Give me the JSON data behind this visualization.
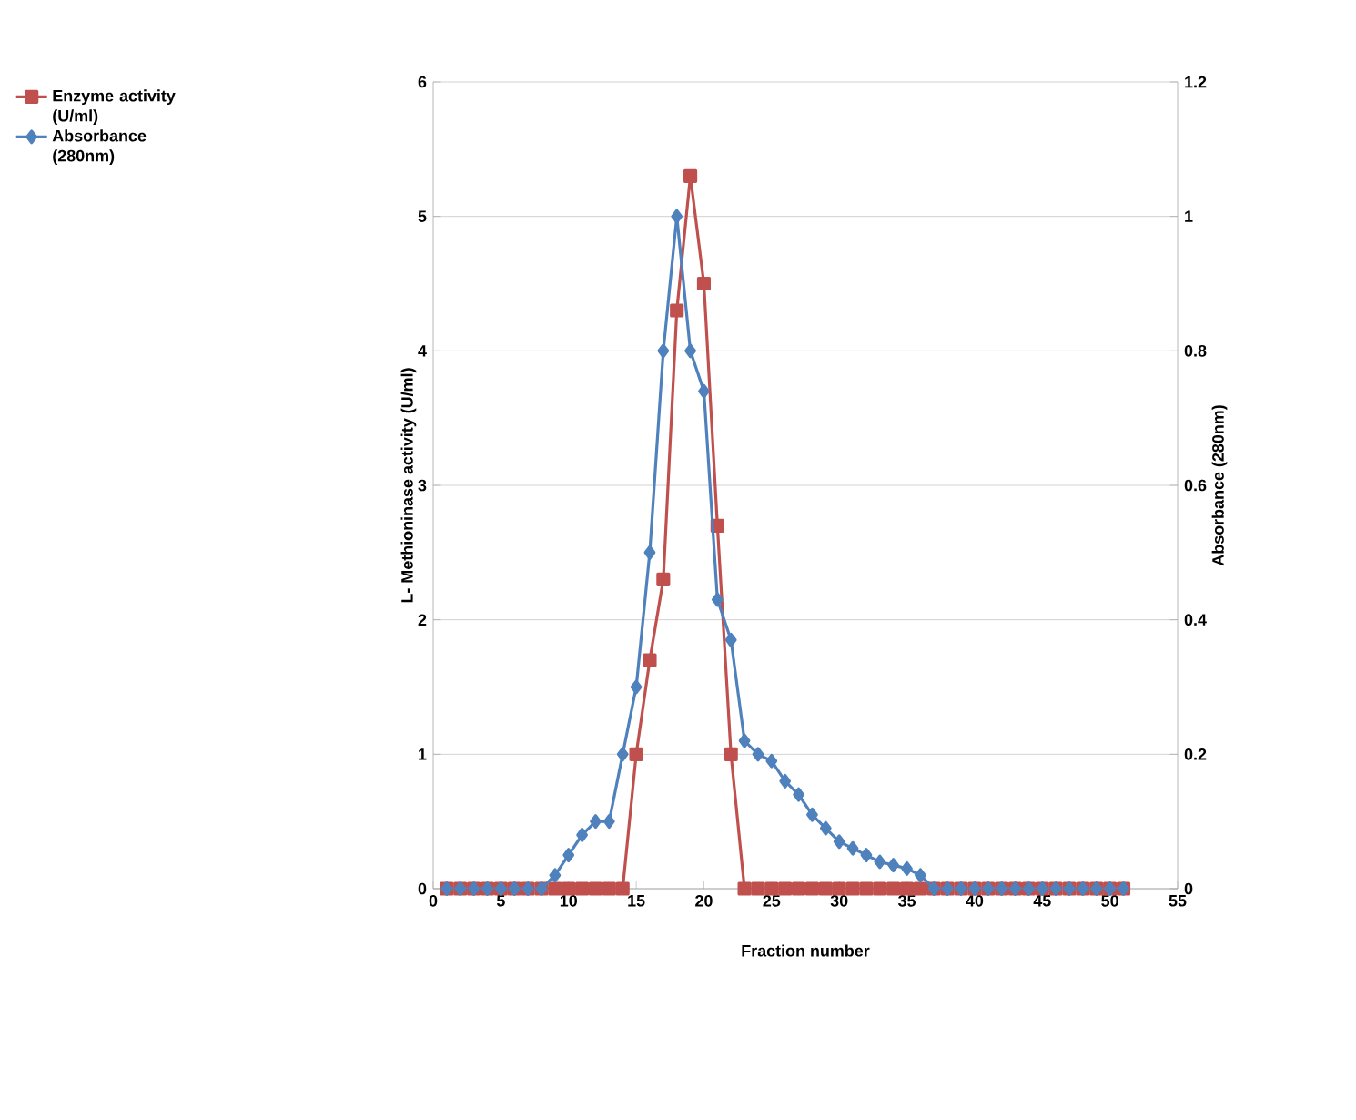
{
  "chart_data": {
    "type": "line",
    "xlabel": "Fraction number",
    "ylabel": "L- Methioninase activity (U/ml)",
    "y2label": "Absorbance (280nm)",
    "xlim": [
      0,
      55
    ],
    "xticks": [
      0,
      5,
      10,
      15,
      20,
      25,
      30,
      35,
      40,
      45,
      50,
      55
    ],
    "ylim": [
      0,
      6
    ],
    "yticks": [
      0,
      1,
      2,
      3,
      4,
      5,
      6
    ],
    "y2lim": [
      0,
      1.2
    ],
    "y2ticks": [
      0,
      0.2,
      0.4,
      0.6,
      0.8,
      1,
      1.2
    ],
    "grid": "y",
    "legend": "left",
    "line_style": "solid",
    "series": [
      {
        "name": "Enzyme activity (U/ml)",
        "color": "#c0504d",
        "marker": "square",
        "x": [
          1,
          2,
          3,
          4,
          5,
          6,
          7,
          8,
          9,
          10,
          11,
          12,
          13,
          14,
          15,
          16,
          17,
          18,
          19,
          20,
          21,
          22,
          23,
          24,
          25,
          26,
          27,
          28,
          29,
          30,
          31,
          32,
          33,
          34,
          35,
          36,
          37,
          38,
          39,
          40,
          41,
          42,
          43,
          44,
          45,
          46,
          47,
          48,
          49,
          50,
          51
        ],
        "values": [
          0,
          0,
          0,
          0,
          0,
          0,
          0,
          0,
          0,
          0,
          0,
          0,
          0,
          0,
          1,
          1.7,
          2.3,
          4.3,
          5.3,
          4.5,
          2.7,
          1,
          0,
          0,
          0,
          0,
          0,
          0,
          0,
          0,
          0,
          0,
          0,
          0,
          0,
          0,
          0,
          0,
          0,
          0,
          0,
          0,
          0,
          0,
          0,
          0,
          0,
          0,
          0,
          0,
          0
        ]
      },
      {
        "name": "Absorbance (280nm)",
        "color": "#4f81bd",
        "marker": "diamond",
        "axis": "y2",
        "x": [
          1,
          2,
          3,
          4,
          5,
          6,
          7,
          8,
          9,
          10,
          11,
          12,
          13,
          14,
          15,
          16,
          17,
          18,
          19,
          20,
          21,
          22,
          23,
          24,
          25,
          26,
          27,
          28,
          29,
          30,
          31,
          32,
          33,
          34,
          35,
          36,
          37,
          38,
          39,
          40,
          41,
          42,
          43,
          44,
          45,
          46,
          47,
          48,
          49,
          50,
          51
        ],
        "values": [
          0,
          0,
          0,
          0,
          0,
          0,
          0,
          0,
          0.02,
          0.05,
          0.08,
          0.1,
          0.1,
          0.2,
          0.3,
          0.5,
          0.8,
          1,
          0.8,
          0.74,
          0.43,
          0.37,
          0.22,
          0.2,
          0.19,
          0.16,
          0.14,
          0.11,
          0.09,
          0.07,
          0.06,
          0.05,
          0.04,
          0.035,
          0.03,
          0.02,
          0,
          0,
          0,
          0,
          0,
          0,
          0,
          0,
          0,
          0,
          0,
          0,
          0,
          0,
          0
        ]
      }
    ]
  }
}
